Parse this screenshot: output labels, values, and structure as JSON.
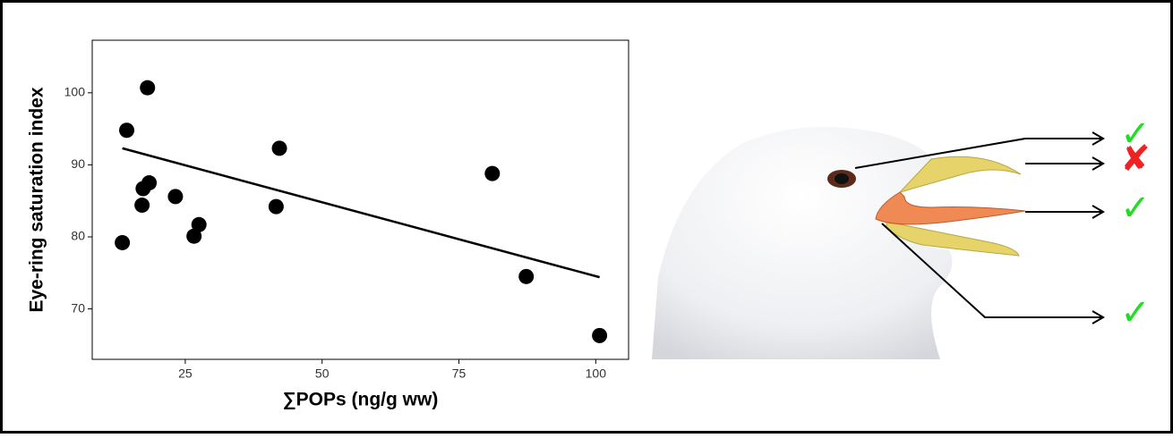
{
  "chart_data": {
    "type": "scatter",
    "x_label": "∑POPs (ng/g ww)",
    "y_label": "Eye-ring saturation index",
    "series": [
      {
        "color": "#000000",
        "x": [
          13.5,
          14.3,
          18.1,
          17.3,
          17.1,
          18.4,
          23.2,
          26.6,
          27.5,
          41.6,
          42.2,
          81.1,
          87.3,
          100.7
        ],
        "values": [
          79.2,
          94.8,
          100.7,
          86.7,
          84.4,
          87.5,
          85.6,
          80.1,
          81.7,
          84.2,
          92.3,
          88.8,
          74.5,
          66.3
        ]
      }
    ],
    "trendline": {
      "x": [
        13.5,
        100.7
      ],
      "values": [
        92.3,
        74.4
      ],
      "color": "#000000"
    },
    "xlim": [
      8,
      106
    ],
    "ylim": [
      63,
      107.3
    ],
    "xticks": [
      25,
      50,
      75,
      100
    ],
    "yticks": [
      70,
      80,
      90,
      100
    ],
    "grid": false
  },
  "annotations": [
    {
      "symbol": "✓",
      "color": "#22dd22"
    },
    {
      "symbol": "✘",
      "color": "#ee2222"
    },
    {
      "symbol": "✓",
      "color": "#22dd22"
    },
    {
      "symbol": "✓",
      "color": "#22dd22"
    }
  ]
}
